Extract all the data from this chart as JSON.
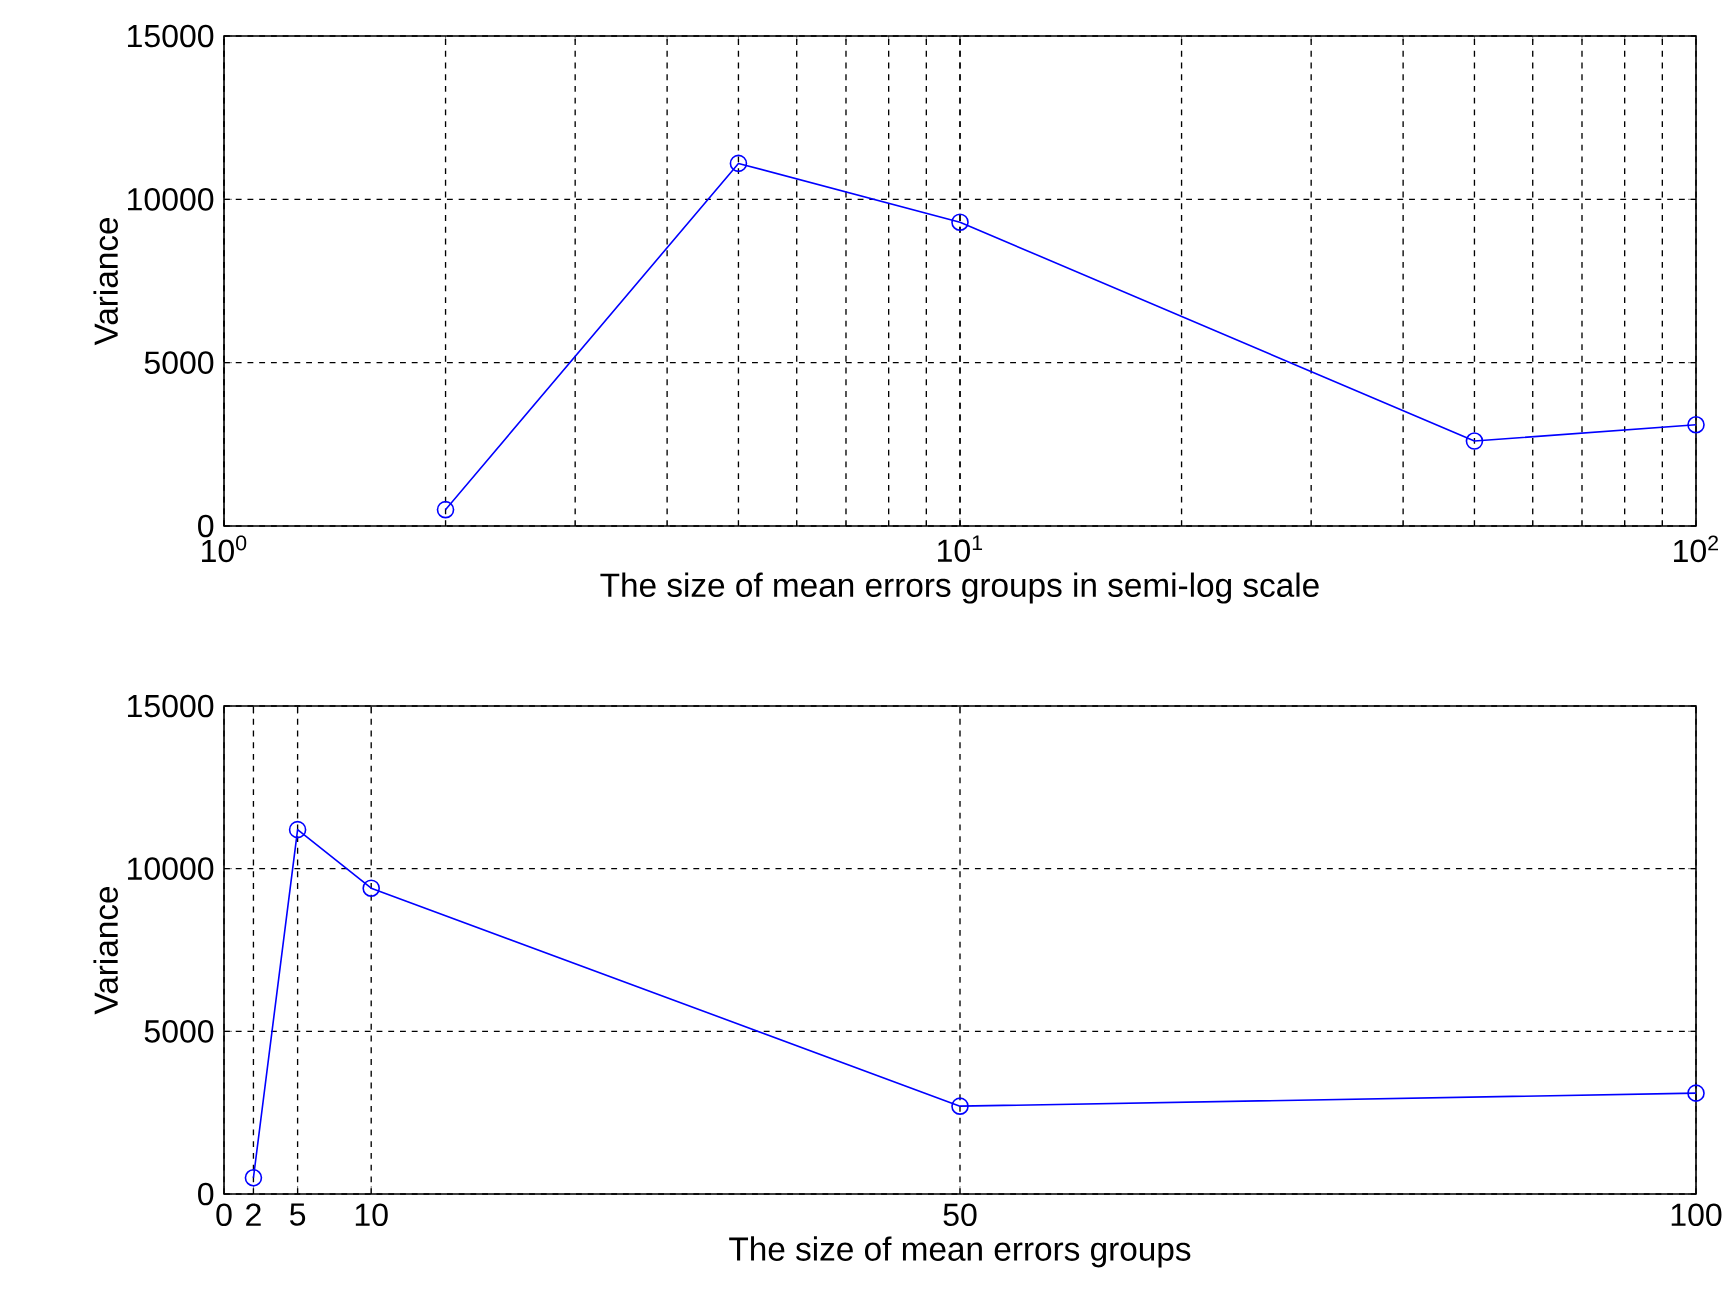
{
  "chart_data": [
    {
      "type": "line",
      "xlabel": "The size of mean errors groups in semi-log scale",
      "ylabel": "Variance",
      "log": "x",
      "x": [
        2,
        5,
        10,
        50,
        100
      ],
      "series": [
        {
          "color": "#0000ff",
          "values": [
            500,
            11100,
            9300,
            2600,
            3100
          ]
        }
      ],
      "xlim": [
        1,
        100
      ],
      "ylim": [
        0,
        15000
      ],
      "xticks": [
        {
          "value": 1,
          "label": "10$^{0}$"
        },
        {
          "value": 10,
          "label": "10$^{1}$"
        },
        {
          "value": 100,
          "label": "10$^{2}$"
        }
      ],
      "yticks": [
        0,
        5000,
        10000,
        15000
      ],
      "grid": true,
      "marker": "circle",
      "line_style": "solid"
    },
    {
      "type": "line",
      "xlabel": "The size of mean errors groups",
      "ylabel": "Variance",
      "x": [
        2,
        5,
        10,
        50,
        100
      ],
      "series": [
        {
          "color": "#0000ff",
          "values": [
            500,
            11200,
            9400,
            2700,
            3100
          ]
        }
      ],
      "xlim": [
        0,
        100
      ],
      "ylim": [
        0,
        15000
      ],
      "xticks": [
        0,
        2,
        5,
        10,
        50,
        100
      ],
      "yticks": [
        0,
        5000,
        10000,
        15000
      ],
      "grid": true,
      "marker": "circle",
      "line_style": "solid"
    }
  ]
}
